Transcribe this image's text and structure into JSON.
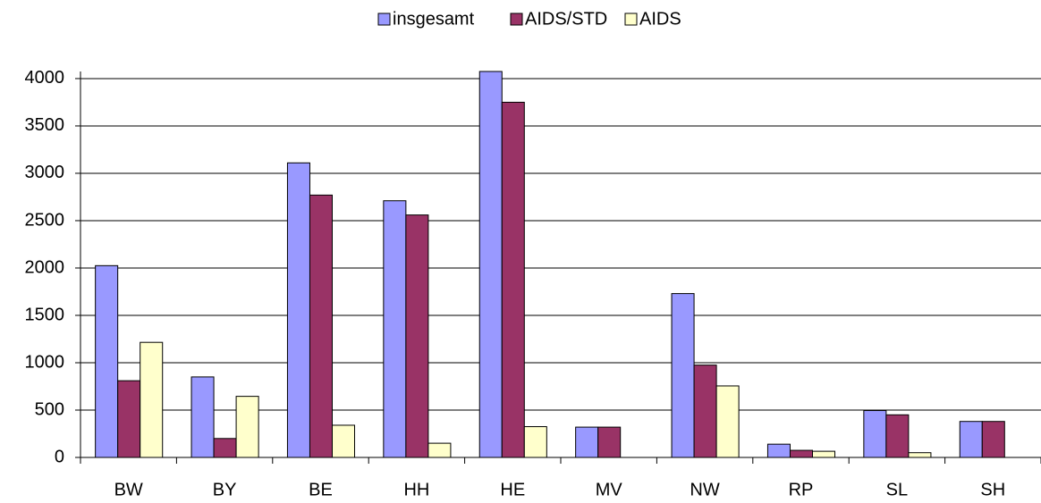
{
  "chart_data": {
    "type": "bar",
    "categories": [
      "BW",
      "BY",
      "BE",
      "HH",
      "HE",
      "MV",
      "NW",
      "RP",
      "SL",
      "SH"
    ],
    "series": [
      {
        "name": "insgesamt",
        "color": "#9999ff",
        "values": [
          2025,
          850,
          3110,
          2710,
          4075,
          320,
          1730,
          140,
          495,
          380
        ]
      },
      {
        "name": "AIDS/STD",
        "color": "#993366",
        "values": [
          810,
          200,
          2770,
          2560,
          3750,
          320,
          975,
          75,
          450,
          380
        ]
      },
      {
        "name": "AIDS",
        "color": "#ffffcc",
        "values": [
          1215,
          645,
          340,
          150,
          325,
          0,
          755,
          65,
          50,
          0
        ]
      }
    ],
    "ylim": [
      0,
      4075
    ],
    "yticks": [
      0,
      500,
      1000,
      1500,
      2000,
      2500,
      3000,
      3500,
      4000
    ],
    "grid": true,
    "legend": "top"
  }
}
